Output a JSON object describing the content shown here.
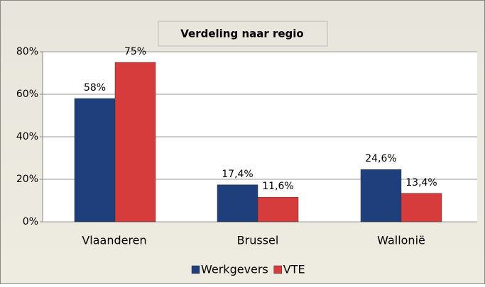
{
  "chart_data": {
    "type": "bar",
    "title": "Verdeling naar regio",
    "categories": [
      "Vlaanderen",
      "Brussel",
      "Wallonië"
    ],
    "series": [
      {
        "name": "Werkgevers",
        "color": "#1f3f7c",
        "values": [
          58,
          17.4,
          24.6
        ],
        "value_labels": [
          "58%",
          "17,4%",
          "24,6%"
        ]
      },
      {
        "name": "VTE",
        "color": "#d63c3c",
        "values": [
          75,
          11.6,
          13.4
        ],
        "value_labels": [
          "75%",
          "11,6%",
          "13,4%"
        ]
      }
    ],
    "ylim": [
      0,
      80
    ],
    "yticks": [
      {
        "value": 0,
        "label": "0%"
      },
      {
        "value": 20,
        "label": "20%"
      },
      {
        "value": 40,
        "label": "40%"
      },
      {
        "value": 60,
        "label": "60%"
      },
      {
        "value": 80,
        "label": "80%"
      }
    ],
    "grid": true,
    "legend": "bottom"
  }
}
